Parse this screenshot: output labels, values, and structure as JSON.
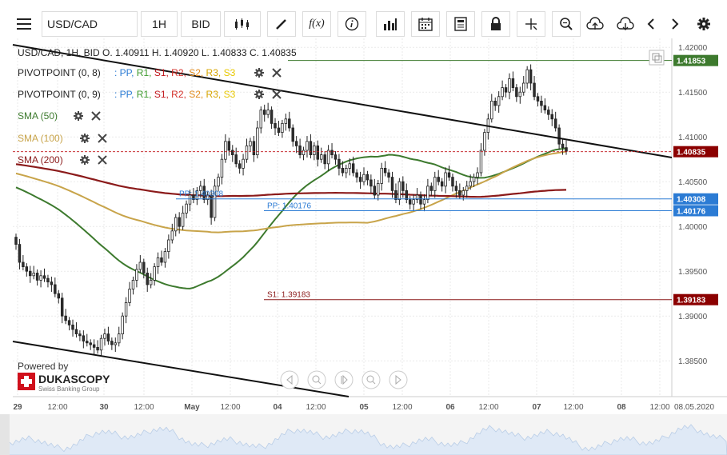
{
  "toolbar": {
    "menu_icon": "hamburger-icon",
    "symbol": "USD/CAD",
    "timeframe": "1H",
    "price_side": "BID",
    "icons": [
      "candle-type-icon",
      "draw-pencil-icon",
      "function-icon",
      "info-icon",
      "bar-volume-icon",
      "calendar-icon",
      "report-icon",
      "lock-icon",
      "crosshair-icon",
      "zoom-search-icon",
      "upload-cloud-icon",
      "download-cloud-icon",
      "arrow-left-icon",
      "arrow-right-icon",
      "settings-gear-icon"
    ],
    "func_label": "f(x)"
  },
  "header": {
    "ohlc": "USD/CAD, 1H, BID    O. 1.40911 H. 1.40920 L. 1.40833 C. 1.40835"
  },
  "legend": {
    "pivot1": {
      "name": "PIVOTPOINT (0, 8)",
      "parts": [
        ": PP,",
        " R1,",
        " S1,",
        " R2,",
        " S2,",
        " R3,",
        " S3"
      ]
    },
    "pivot2": {
      "name": "PIVOTPOINT (0, 9)",
      "parts": [
        ": PP,",
        " R1,",
        " S1,",
        " R2,",
        " S2,",
        " R3,",
        " S3"
      ]
    },
    "sma50": "SMA (50)",
    "sma100": "SMA (100)",
    "sma200": "SMA (200)"
  },
  "colors": {
    "up": "#ffffff",
    "down": "#2e2e2e",
    "sma50": "#3d7a2e",
    "sma100": "#c8a44a",
    "sma200": "#8b1a1a",
    "pp": "#2b7bd4",
    "r1": "#3d9a2e",
    "s1": "#c0161b",
    "r2": "#d4302a",
    "s2": "#e08a1c",
    "r3": "#d7a400",
    "s3": "#e8c800",
    "price_tag": "#8b0000",
    "r_tag": "#3d7a2e"
  },
  "branding": {
    "powered_by": "Powered by",
    "company": "DUKASCOPY",
    "tagline": "Swiss Banking Group"
  },
  "chart_data": {
    "type": "candlestick",
    "ylim": [
      1.381,
      1.421
    ],
    "y_ticks": [
      "1.42000",
      "1.41500",
      "1.41000",
      "1.40500",
      "1.40000",
      "1.39500",
      "1.39000",
      "1.38500"
    ],
    "x_ticks": [
      "29",
      "12:00",
      "30",
      "12:00",
      "May",
      "12:00",
      "04",
      "12:00",
      "05",
      "12:00",
      "06",
      "12:00",
      "07",
      "12:00",
      "08",
      "12:00",
      "08.05.2020"
    ],
    "current_price": "1.40835",
    "levels": [
      {
        "name": "R1",
        "value": 1.41853,
        "label": "1.41853",
        "color": "#3d7a2e"
      },
      {
        "name": "PP",
        "value": 1.40308,
        "label": "PP: 1.40308",
        "tag": "1.40308",
        "color": "#2b7bd4"
      },
      {
        "name": "PP",
        "value": 1.40176,
        "label": "PP: 1.40176",
        "tag": "1.40176",
        "color": "#2b7bd4"
      },
      {
        "name": "S1",
        "value": 1.39183,
        "label": "S1: 1.39183",
        "tag": "1.39183",
        "color": "#8b1a1a"
      }
    ],
    "closes": [
      1.398,
      1.396,
      1.3955,
      1.395,
      1.3945,
      1.3948,
      1.394,
      1.3945,
      1.3942,
      1.3938,
      1.3935,
      1.3925,
      1.392,
      1.39,
      1.3895,
      1.389,
      1.3885,
      1.388,
      1.3878,
      1.3872,
      1.387,
      1.3868,
      1.3865,
      1.3862,
      1.3875,
      1.388,
      1.3872,
      1.3868,
      1.387,
      1.388,
      1.39,
      1.3915,
      1.393,
      1.394,
      1.3952,
      1.396,
      1.3948,
      1.3935,
      1.394,
      1.3955,
      1.3965,
      1.396,
      1.3972,
      1.3985,
      1.3995,
      1.401,
      1.4,
      1.4015,
      1.4025,
      1.4035,
      1.403,
      1.404,
      1.4045,
      1.403,
      1.4035,
      1.401,
      1.4045,
      1.4055,
      1.4075,
      1.4095,
      1.4085,
      1.408,
      1.407,
      1.4065,
      1.4075,
      1.409,
      1.4095,
      1.408,
      1.411,
      1.413,
      1.4125,
      1.413,
      1.4115,
      1.411,
      1.4105,
      1.4115,
      1.412,
      1.411,
      1.4095,
      1.409,
      1.408,
      1.4085,
      1.4095,
      1.408,
      1.409,
      1.4075,
      1.408,
      1.407,
      1.4085,
      1.408,
      1.4075,
      1.4065,
      1.406,
      1.4065,
      1.407,
      1.406,
      1.4055,
      1.405,
      1.4058,
      1.4052,
      1.4045,
      1.4035,
      1.4048,
      1.4065,
      1.406,
      1.4055,
      1.404,
      1.403,
      1.405,
      1.404,
      1.403,
      1.4025,
      1.403,
      1.4035,
      1.4025,
      1.403,
      1.4045,
      1.404,
      1.4055,
      1.405,
      1.4045,
      1.406,
      1.4055,
      1.4045,
      1.404,
      1.4035,
      1.404,
      1.4045,
      1.405,
      1.4055,
      1.406,
      1.4085,
      1.4105,
      1.412,
      1.414,
      1.4135,
      1.4145,
      1.4155,
      1.415,
      1.4165,
      1.4155,
      1.4145,
      1.415,
      1.416,
      1.4175,
      1.416,
      1.4145,
      1.414,
      1.4135,
      1.413,
      1.4125,
      1.412,
      1.411,
      1.4092,
      1.4088,
      1.4084
    ]
  }
}
